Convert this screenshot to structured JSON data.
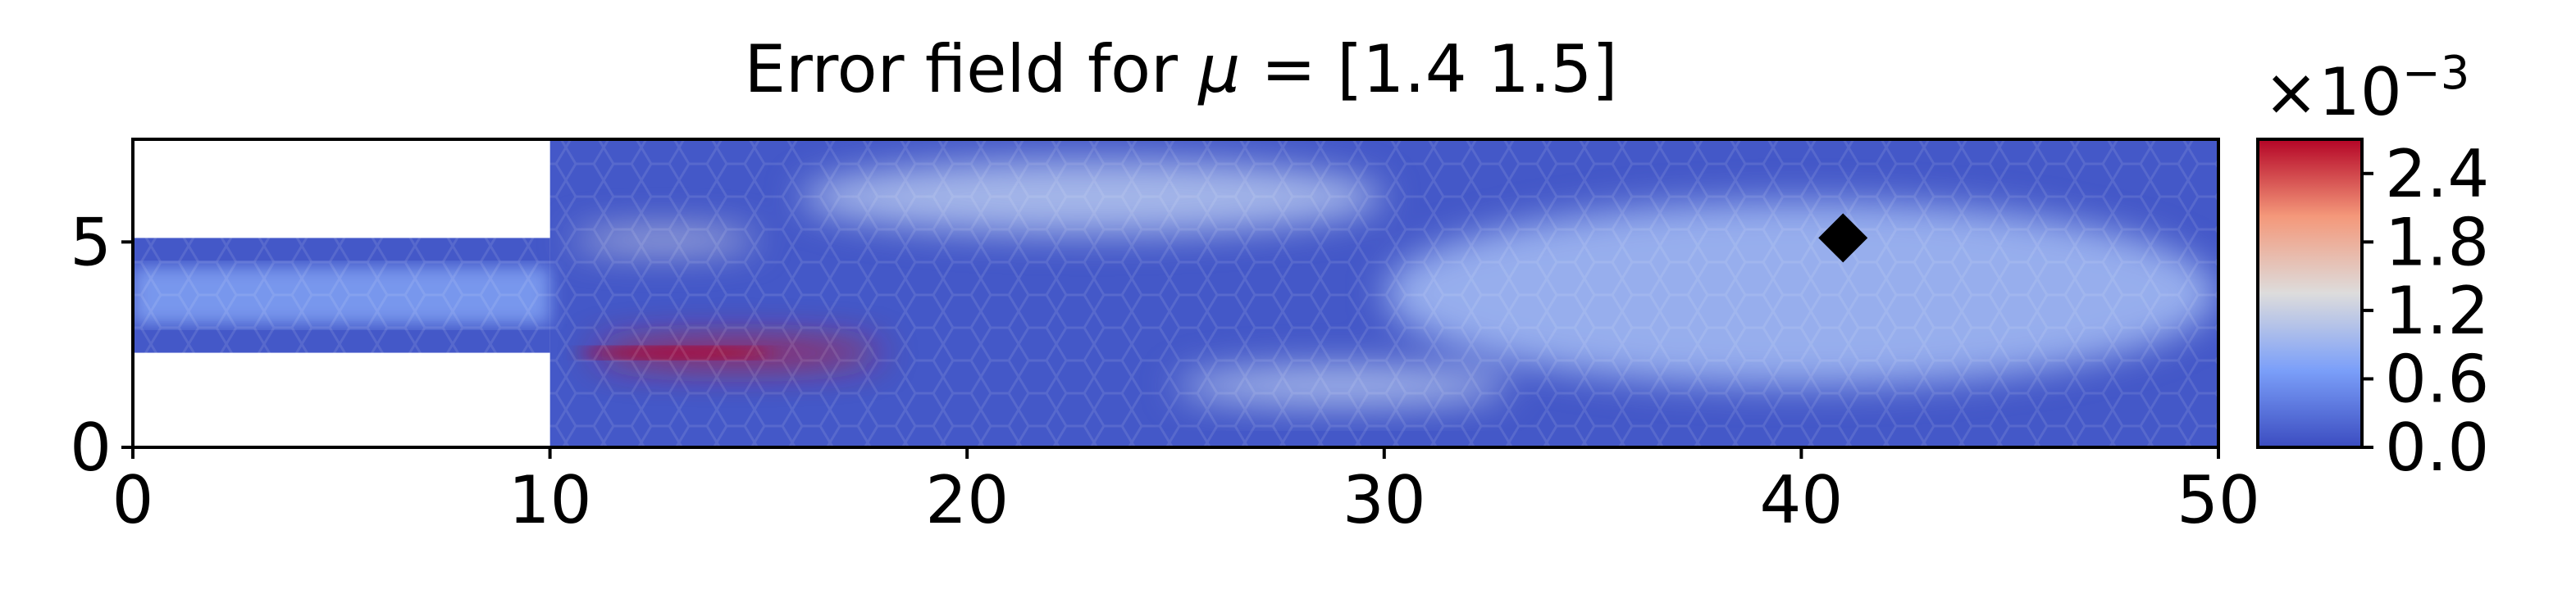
{
  "chart_data": {
    "type": "heatmap",
    "title_prefix": "Error field for ",
    "title_symbol": "μ",
    "title_suffix": " = [1.4 1.5]",
    "x_range": [
      0,
      50
    ],
    "y_range": [
      0,
      7.5
    ],
    "x_ticks": [
      "0",
      "10",
      "20",
      "30",
      "40",
      "50"
    ],
    "y_ticks": [
      "0",
      "5"
    ],
    "colorbar": {
      "multiplier_base": "×10",
      "multiplier_exp": "−3",
      "range": [
        0.0,
        2.7
      ],
      "ticks": [
        "0.0",
        "0.6",
        "1.2",
        "1.8",
        "2.4"
      ],
      "colormap": "coolwarm"
    },
    "domain": {
      "inlet_channel": {
        "x": [
          0,
          10
        ],
        "y": [
          2.3,
          5.1
        ]
      },
      "main_channel": {
        "x": [
          10,
          50
        ],
        "y": [
          0,
          7.5
        ]
      }
    },
    "error_field_features": [
      {
        "region": "high-error streak below step",
        "x": [
          11,
          18
        ],
        "y": [
          2.0,
          2.6
        ],
        "value": 2.6
      },
      {
        "region": "moderate streak above step",
        "x": [
          10.5,
          15
        ],
        "y": [
          4.8,
          5.3
        ],
        "value": 1.2
      },
      {
        "region": "upper band",
        "x": [
          16,
          30
        ],
        "y": [
          5.2,
          7.0
        ],
        "value": 1.0
      },
      {
        "region": "lower band",
        "x": [
          25,
          33
        ],
        "y": [
          1.0,
          2.0
        ],
        "value": 1.0
      },
      {
        "region": "downstream core",
        "x": [
          30,
          50
        ],
        "y": [
          1.5,
          6.0
        ],
        "value": 0.9
      },
      {
        "region": "channel walls",
        "x": [
          10,
          50
        ],
        "y": [
          0,
          7.5
        ],
        "value": 0.1
      }
    ],
    "marker": {
      "shape": "diamond",
      "x": 41,
      "y": 5.1,
      "color": "#000000"
    },
    "grid": false
  }
}
